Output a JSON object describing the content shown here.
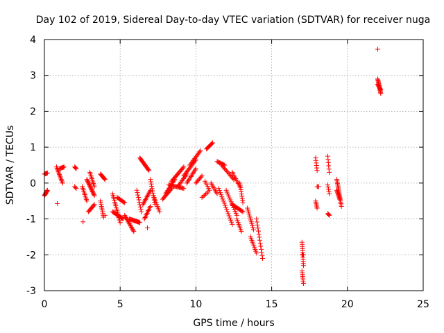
{
  "chart_data": {
    "type": "scatter",
    "title": "Day 102 of 2019, Sidereal Day-to-day VTEC variation (SDTVAR) for receiver nuga",
    "xlabel": "GPS time / hours",
    "ylabel": "SDTVAR / TECUs",
    "xlim": [
      0,
      25
    ],
    "ylim": [
      -3,
      4
    ],
    "xticks": [
      0,
      5,
      10,
      15,
      20,
      25
    ],
    "yticks": [
      -3,
      -2,
      -1,
      0,
      1,
      2,
      3,
      4
    ],
    "xtick_labels": [
      "0",
      "5",
      "10",
      "15",
      "20",
      "25"
    ],
    "ytick_labels": [
      "-3",
      "-2",
      "-1",
      "0",
      "1",
      "2",
      "3",
      "4"
    ],
    "grid": true,
    "marker": "plus",
    "color": "#ff0000",
    "tracks": [
      {
        "x0": 0.0,
        "y0": -0.35,
        "x1": 0.2,
        "y1": -0.2,
        "n": 10
      },
      {
        "x0": 0.0,
        "y0": 0.25,
        "x1": 0.2,
        "y1": 0.28,
        "n": 8
      },
      {
        "x0": 0.8,
        "y0": 0.45,
        "x1": 1.2,
        "y1": 0.0,
        "n": 14
      },
      {
        "x0": 1.0,
        "y0": 0.4,
        "x1": 1.3,
        "y1": 0.45,
        "n": 8
      },
      {
        "x0": 2.0,
        "y0": 0.45,
        "x1": 2.1,
        "y1": 0.4,
        "n": 4
      },
      {
        "x0": 2.0,
        "y0": -0.1,
        "x1": 2.1,
        "y1": -0.15,
        "n": 3
      },
      {
        "x0": 2.5,
        "y0": -0.1,
        "x1": 2.8,
        "y1": -0.5,
        "n": 10
      },
      {
        "x0": 2.8,
        "y0": 0.1,
        "x1": 3.3,
        "y1": -0.35,
        "n": 18
      },
      {
        "x0": 2.9,
        "y0": -0.8,
        "x1": 3.3,
        "y1": -0.6,
        "n": 10
      },
      {
        "x0": 3.0,
        "y0": 0.3,
        "x1": 3.3,
        "y1": -0.1,
        "n": 10
      },
      {
        "x0": 3.7,
        "y0": 0.25,
        "x1": 4.0,
        "y1": 0.1,
        "n": 10
      },
      {
        "x0": 3.7,
        "y0": -0.5,
        "x1": 3.9,
        "y1": -0.95,
        "n": 10
      },
      {
        "x0": 4.5,
        "y0": -0.3,
        "x1": 5.0,
        "y1": -1.1,
        "n": 18
      },
      {
        "x0": 4.5,
        "y0": -0.8,
        "x1": 5.2,
        "y1": -1.0,
        "n": 16
      },
      {
        "x0": 4.8,
        "y0": -0.4,
        "x1": 5.3,
        "y1": -0.55,
        "n": 10
      },
      {
        "x0": 5.3,
        "y0": -0.9,
        "x1": 5.9,
        "y1": -1.35,
        "n": 16
      },
      {
        "x0": 5.6,
        "y0": -1.0,
        "x1": 6.3,
        "y1": -1.1,
        "n": 16
      },
      {
        "x0": 6.1,
        "y0": -0.2,
        "x1": 6.4,
        "y1": -0.8,
        "n": 10
      },
      {
        "x0": 6.3,
        "y0": 0.7,
        "x1": 6.9,
        "y1": 0.35,
        "n": 16
      },
      {
        "x0": 6.5,
        "y0": -0.6,
        "x1": 7.0,
        "y1": -0.2,
        "n": 12
      },
      {
        "x0": 6.6,
        "y0": -1.0,
        "x1": 7.0,
        "y1": -0.65,
        "n": 10
      },
      {
        "x0": 7.0,
        "y0": 0.1,
        "x1": 7.3,
        "y1": -0.6,
        "n": 12
      },
      {
        "x0": 7.2,
        "y0": -0.35,
        "x1": 7.6,
        "y1": -0.8,
        "n": 10
      },
      {
        "x0": 7.8,
        "y0": -0.45,
        "x1": 8.4,
        "y1": -0.15,
        "n": 12
      },
      {
        "x0": 8.0,
        "y0": -0.3,
        "x1": 8.6,
        "y1": 0.1,
        "n": 14
      },
      {
        "x0": 8.2,
        "y0": -0.05,
        "x1": 9.2,
        "y1": -0.15,
        "n": 18
      },
      {
        "x0": 8.4,
        "y0": 0.05,
        "x1": 9.2,
        "y1": 0.45,
        "n": 16
      },
      {
        "x0": 8.8,
        "y0": -0.1,
        "x1": 9.4,
        "y1": 0.25,
        "n": 12
      },
      {
        "x0": 9.2,
        "y0": 0.2,
        "x1": 10.0,
        "y1": 0.65,
        "n": 16
      },
      {
        "x0": 9.4,
        "y0": 0.0,
        "x1": 10.0,
        "y1": 0.4,
        "n": 12
      },
      {
        "x0": 9.6,
        "y0": 0.5,
        "x1": 10.3,
        "y1": 0.9,
        "n": 14
      },
      {
        "x0": 10.0,
        "y0": 0.0,
        "x1": 10.4,
        "y1": 0.2,
        "n": 8
      },
      {
        "x0": 10.4,
        "y0": -0.4,
        "x1": 10.8,
        "y1": -0.25,
        "n": 6
      },
      {
        "x0": 10.6,
        "y0": 0.05,
        "x1": 10.9,
        "y1": -0.2,
        "n": 6
      },
      {
        "x0": 10.7,
        "y0": 0.95,
        "x1": 11.1,
        "y1": 1.12,
        "n": 10
      },
      {
        "x0": 11.0,
        "y0": 0.0,
        "x1": 11.4,
        "y1": -0.3,
        "n": 8
      },
      {
        "x0": 11.4,
        "y0": 0.6,
        "x1": 11.9,
        "y1": 0.5,
        "n": 10
      },
      {
        "x0": 11.5,
        "y0": -0.15,
        "x1": 12.4,
        "y1": -1.15,
        "n": 18
      },
      {
        "x0": 11.7,
        "y0": 0.5,
        "x1": 12.5,
        "y1": 0.1,
        "n": 14
      },
      {
        "x0": 12.0,
        "y0": -0.2,
        "x1": 12.7,
        "y1": -0.9,
        "n": 14
      },
      {
        "x0": 12.4,
        "y0": -0.6,
        "x1": 13.1,
        "y1": -0.8,
        "n": 14
      },
      {
        "x0": 12.4,
        "y0": 0.3,
        "x1": 12.9,
        "y1": -0.1,
        "n": 10
      },
      {
        "x0": 12.7,
        "y0": -1.0,
        "x1": 13.0,
        "y1": -1.35,
        "n": 8
      },
      {
        "x0": 12.9,
        "y0": 0.0,
        "x1": 13.1,
        "y1": -0.55,
        "n": 10
      },
      {
        "x0": 13.4,
        "y0": -0.7,
        "x1": 13.8,
        "y1": -1.3,
        "n": 12
      },
      {
        "x0": 13.6,
        "y0": -1.5,
        "x1": 14.0,
        "y1": -1.95,
        "n": 10
      },
      {
        "x0": 14.0,
        "y0": -1.0,
        "x1": 14.4,
        "y1": -2.1,
        "n": 14
      },
      {
        "x0": 17.0,
        "y0": -1.65,
        "x1": 17.1,
        "y1": -2.3,
        "n": 12
      },
      {
        "x0": 17.0,
        "y0": -2.45,
        "x1": 17.1,
        "y1": -2.8,
        "n": 8
      },
      {
        "x0": 17.0,
        "y0": -2.0,
        "x1": 17.1,
        "y1": -2.0,
        "n": 4
      },
      {
        "x0": 17.9,
        "y0": 0.7,
        "x1": 18.0,
        "y1": 0.35,
        "n": 6
      },
      {
        "x0": 17.9,
        "y0": -0.5,
        "x1": 18.0,
        "y1": -0.7,
        "n": 6
      },
      {
        "x0": 18.0,
        "y0": -0.1,
        "x1": 18.1,
        "y1": -0.1,
        "n": 3
      },
      {
        "x0": 18.7,
        "y0": 0.75,
        "x1": 18.8,
        "y1": 0.3,
        "n": 6
      },
      {
        "x0": 18.7,
        "y0": -0.05,
        "x1": 18.8,
        "y1": -0.3,
        "n": 5
      },
      {
        "x0": 18.7,
        "y0": -0.85,
        "x1": 18.8,
        "y1": -0.9,
        "n": 4
      },
      {
        "x0": 19.3,
        "y0": 0.1,
        "x1": 19.6,
        "y1": -0.65,
        "n": 20
      },
      {
        "x0": 19.3,
        "y0": -0.2,
        "x1": 19.5,
        "y1": -0.45,
        "n": 10
      },
      {
        "x0": 22.0,
        "y0": 2.9,
        "x1": 22.2,
        "y1": 2.5,
        "n": 16
      },
      {
        "x0": 22.0,
        "y0": 2.75,
        "x1": 22.2,
        "y1": 2.6,
        "n": 8
      }
    ],
    "isolated": [
      {
        "x": 0.85,
        "y": -0.57
      },
      {
        "x": 2.55,
        "y": -1.08
      },
      {
        "x": 22.0,
        "y": 3.73
      },
      {
        "x": 4.0,
        "y": -0.9
      },
      {
        "x": 6.8,
        "y": -1.25
      }
    ]
  }
}
